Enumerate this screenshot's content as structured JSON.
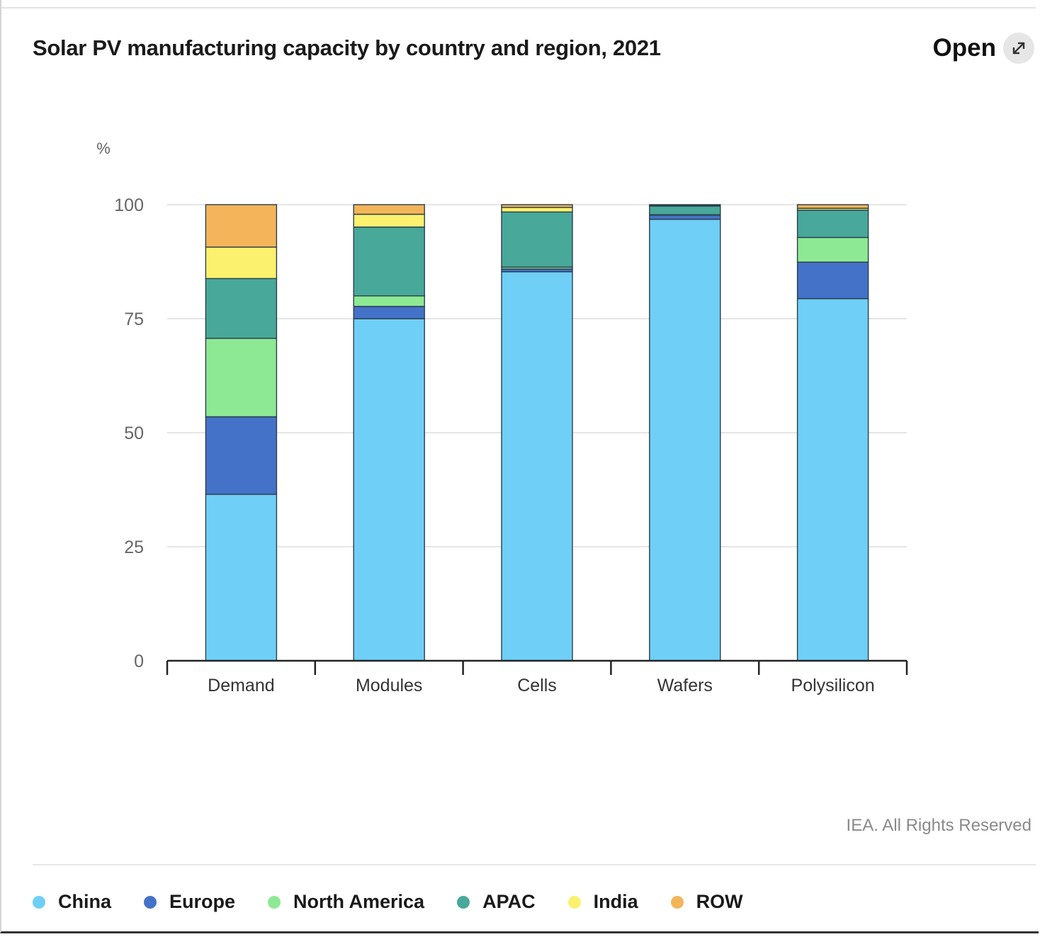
{
  "header": {
    "title": "Solar PV manufacturing capacity by country and region, 2021",
    "open_label": "Open",
    "open_icon": "expand-arrows-icon"
  },
  "footer": {
    "credit": "IEA. All Rights Reserved"
  },
  "chart_data": {
    "type": "bar",
    "stacked": true,
    "title": "Solar PV manufacturing capacity by country and region, 2021",
    "ylabel": "%",
    "xlabel": "",
    "ylim": [
      0,
      100
    ],
    "yticks": [
      "0",
      "25",
      "50",
      "75",
      "100"
    ],
    "ytick_values": [
      0,
      25,
      50,
      75,
      100
    ],
    "grid": true,
    "legend_position": "bottom-left",
    "categories": [
      "Demand",
      "Modules",
      "Cells",
      "Wafers",
      "Polysilicon"
    ],
    "series": [
      {
        "name": "China",
        "color": "#6fcff7",
        "values": [
          36.5,
          75.0,
          85.3,
          96.8,
          79.4
        ]
      },
      {
        "name": "Europe",
        "color": "#4472c8",
        "values": [
          17.0,
          2.7,
          0.6,
          0.9,
          8.0
        ]
      },
      {
        "name": "North America",
        "color": "#8ee994",
        "values": [
          17.2,
          2.3,
          0.4,
          0.1,
          5.4
        ]
      },
      {
        "name": "APAC",
        "color": "#48a89a",
        "values": [
          13.1,
          15.1,
          12.1,
          1.9,
          6.0
        ]
      },
      {
        "name": "India",
        "color": "#fcf16e",
        "values": [
          6.9,
          2.8,
          1.0,
          0.1,
          0.4
        ]
      },
      {
        "name": "ROW",
        "color": "#f4b55a",
        "values": [
          9.3,
          2.1,
          0.6,
          0.2,
          0.8
        ]
      }
    ]
  }
}
